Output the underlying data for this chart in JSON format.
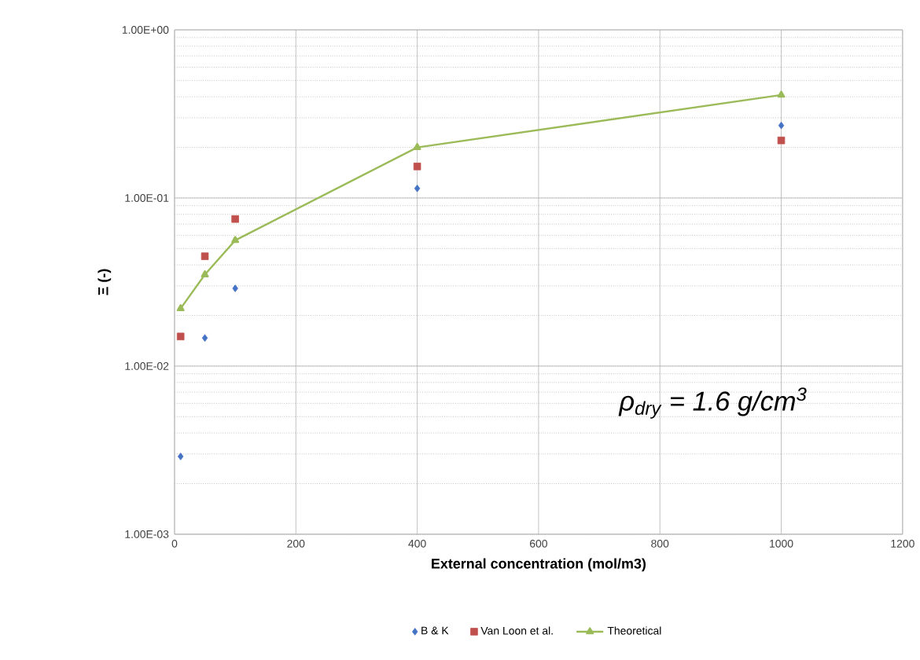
{
  "chart_data": {
    "type": "scatter",
    "xlabel": "External concentration (mol/m3)",
    "ylabel": "Ξ (-)",
    "x": [
      10,
      50,
      100,
      400,
      1000
    ],
    "series": [
      {
        "name": "B & K",
        "color": "#4472c4",
        "marker": "diamond",
        "values": [
          0.0029,
          0.0147,
          0.029,
          0.114,
          0.27
        ]
      },
      {
        "name": "Van Loon et al.",
        "color": "#c0504d",
        "marker": "square",
        "values": [
          0.015,
          0.045,
          0.075,
          0.154,
          0.22
        ]
      },
      {
        "name": "Theoretical",
        "type": "line",
        "color": "#9bbb59",
        "marker": "triangle",
        "values": [
          0.022,
          0.035,
          0.056,
          0.2,
          0.41
        ]
      }
    ],
    "xlim": [
      0,
      1200
    ],
    "xticks": [
      0,
      200,
      400,
      600,
      800,
      1000,
      1200
    ],
    "ylim": [
      0.001,
      1
    ],
    "log": "y",
    "yticks": [
      {
        "value": 0.001,
        "label": "1.00E-03"
      },
      {
        "value": 0.01,
        "label": "1.00E-02"
      },
      {
        "value": 0.1,
        "label": "1.00E-01"
      },
      {
        "value": 1,
        "label": "1.00E+00"
      }
    ],
    "grid": true,
    "legend": "bottom",
    "annotations": [
      "*ρ$_{dry}$ = 1.6 g/cm$^{3}$*"
    ]
  }
}
